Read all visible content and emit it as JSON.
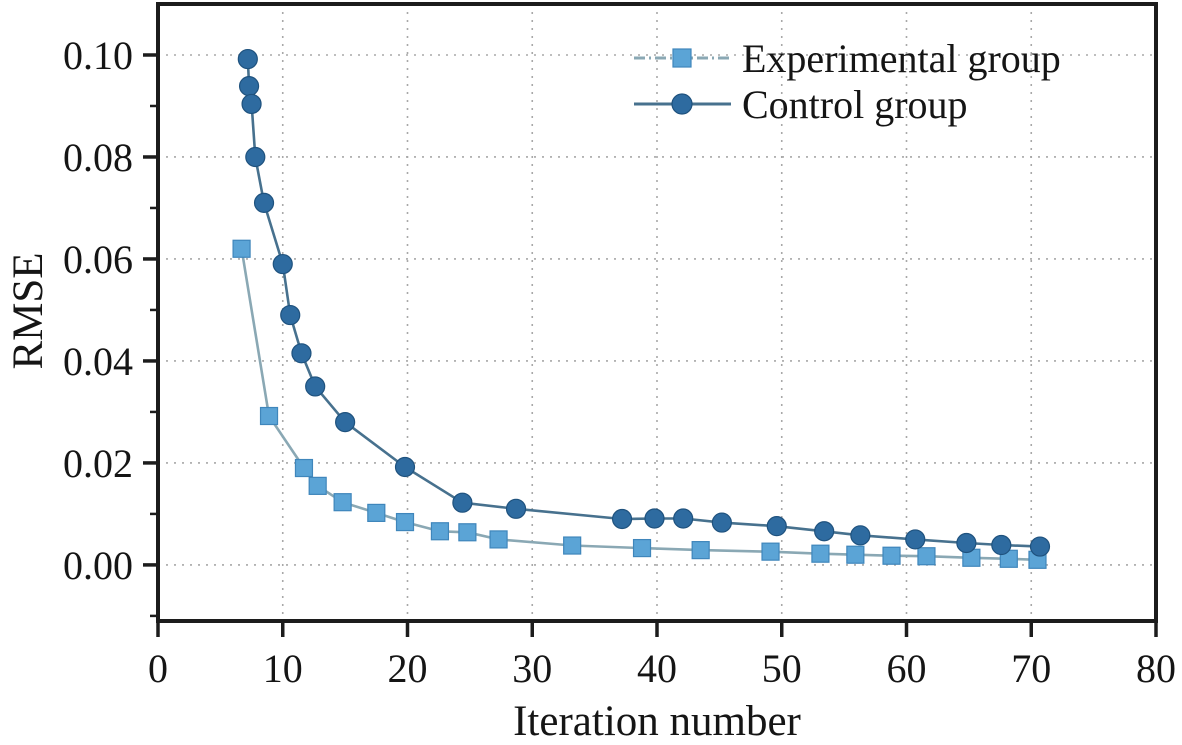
{
  "figure": {
    "background": "#ffffff",
    "frame_color": "#1c1c1c",
    "grid_color": "#a8a8a8",
    "text_color": "#151515"
  },
  "chart_data": {
    "type": "line",
    "title": "",
    "xlabel": "Iteration number",
    "ylabel": "RMSE",
    "xlim": [
      0,
      80
    ],
    "ylim": [
      -0.011,
      0.11
    ],
    "grid": "dotted gridlines at major ticks, both axes",
    "legend_position": "upper right, no frame",
    "xticks": {
      "values": [
        0,
        10,
        20,
        30,
        40,
        50,
        60,
        70,
        80
      ],
      "labels": [
        "0",
        "10",
        "20",
        "30",
        "40",
        "50",
        "60",
        "70",
        "80"
      ]
    },
    "yticks": {
      "values": [
        0.0,
        0.02,
        0.04,
        0.06,
        0.08,
        0.1
      ],
      "labels": [
        "0.00",
        "0.02",
        "0.04",
        "0.06",
        "0.08",
        "0.10"
      ]
    },
    "y_minor_tick_values": [
      -0.01,
      0.01,
      0.03,
      0.05,
      0.07,
      0.09
    ],
    "series": [
      {
        "name": "Experimental group",
        "marker": "square",
        "line_style": "dash-dot",
        "color": "#5ba4d6",
        "marker_edge": "#3f86bb",
        "line_color": "#8aa8b4",
        "x": [
          6.7,
          8.9,
          11.7,
          12.8,
          14.8,
          17.5,
          19.8,
          22.6,
          24.8,
          27.3,
          33.2,
          38.8,
          43.5,
          49.1,
          53.1,
          55.9,
          58.8,
          61.6,
          65.2,
          68.2,
          70.5
        ],
        "y": [
          0.062,
          0.0292,
          0.019,
          0.0155,
          0.0123,
          0.0102,
          0.0084,
          0.0066,
          0.0064,
          0.005,
          0.0038,
          0.0033,
          0.0029,
          0.0026,
          0.0022,
          0.002,
          0.0018,
          0.0017,
          0.0014,
          0.0012,
          0.001
        ]
      },
      {
        "name": "Control group",
        "marker": "circle",
        "line_style": "solid",
        "color": "#2e6ba0",
        "marker_edge": "#1f527e",
        "line_color": "#47718e",
        "x": [
          7.2,
          7.3,
          7.5,
          7.8,
          8.5,
          10.0,
          10.6,
          11.5,
          12.6,
          15.0,
          19.8,
          24.4,
          28.7,
          37.2,
          39.8,
          42.1,
          45.2,
          49.6,
          53.4,
          56.3,
          60.7,
          64.8,
          67.6,
          70.7
        ],
        "y": [
          0.0992,
          0.0939,
          0.0904,
          0.08,
          0.071,
          0.059,
          0.049,
          0.0415,
          0.035,
          0.028,
          0.0192,
          0.0122,
          0.011,
          0.009,
          0.0091,
          0.0091,
          0.0083,
          0.0076,
          0.0066,
          0.0058,
          0.005,
          0.0043,
          0.0039,
          0.0036
        ]
      }
    ]
  }
}
